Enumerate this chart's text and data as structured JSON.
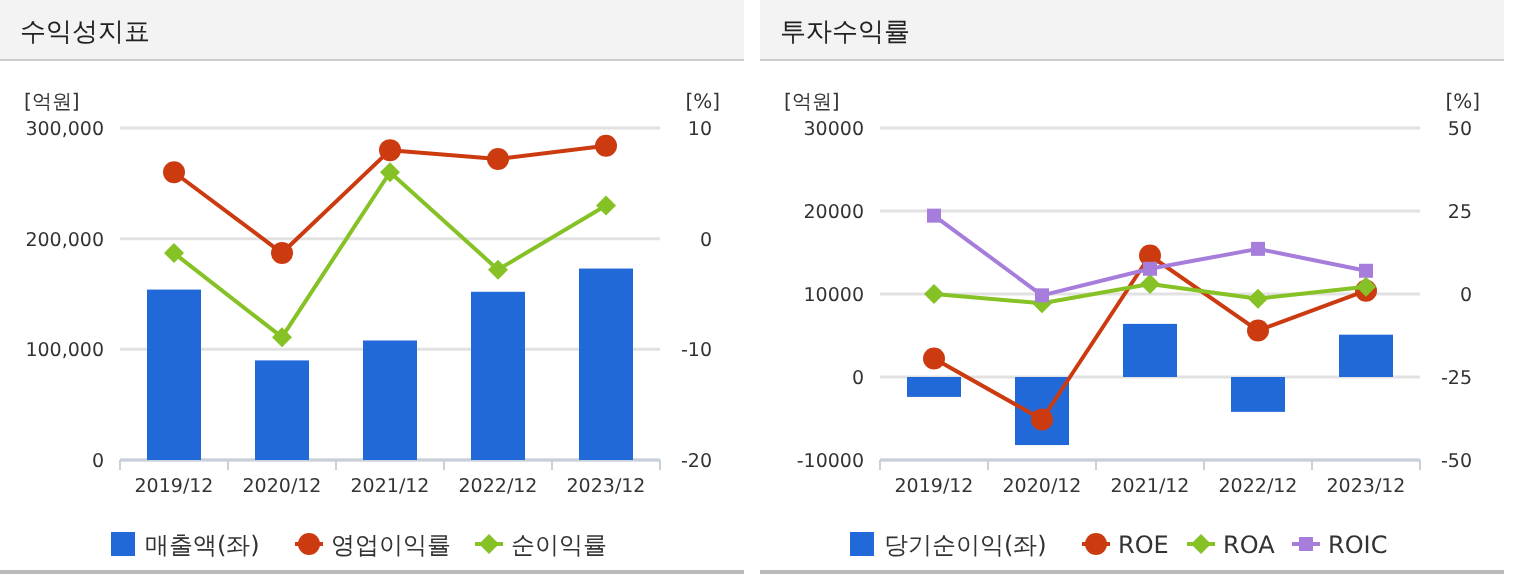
{
  "chart_data": [
    {
      "type": "bar",
      "title": "수익성지표",
      "ylabel": "[억원]",
      "y2label": "[%]",
      "categories": [
        "2019/12",
        "2020/12",
        "2021/12",
        "2022/12",
        "2023/12"
      ],
      "series": [
        {
          "name": "매출액(좌)",
          "color": "#2168d8",
          "values": [
            154000,
            90000,
            108000,
            152000,
            173000
          ]
        },
        {
          "name": "영업이익률",
          "type": "line",
          "axis": "y2",
          "marker": "circle",
          "color": "#cc3a10",
          "values": [
            6.0,
            -1.3,
            8.0,
            7.2,
            8.4
          ]
        },
        {
          "name": "순이익률",
          "type": "line",
          "axis": "y2",
          "marker": "diamond",
          "color": "#86c226",
          "values": [
            -1.3,
            -8.9,
            6.0,
            -2.8,
            3.0
          ]
        }
      ],
      "ylim": [
        0,
        300000
      ],
      "yticks": [
        0,
        {
          "value": 100000,
          "label": "100,000"
        },
        {
          "value": 200000,
          "label": "200,000"
        },
        {
          "value": 300000,
          "label": "300,000"
        }
      ],
      "y2lim": [
        -20,
        10
      ],
      "y2ticks": [
        -20,
        -10,
        0,
        10
      ],
      "grid": "y",
      "legend": "bottom"
    },
    {
      "type": "bar",
      "title": "투자수익률",
      "ylabel": "[억원]",
      "y2label": "[%]",
      "categories": [
        "2019/12",
        "2020/12",
        "2021/12",
        "2022/12",
        "2023/12"
      ],
      "series": [
        {
          "name": "당기순이익(좌)",
          "color": "#2168d8",
          "values": [
            -2400,
            -8200,
            6400,
            -4200,
            5100
          ]
        },
        {
          "name": "ROE",
          "type": "line",
          "axis": "y2",
          "marker": "circle",
          "color": "#cc3a10",
          "values": [
            -19.4,
            -37.8,
            11.6,
            -11,
            1.0
          ]
        },
        {
          "name": "ROA",
          "type": "line",
          "axis": "y2",
          "marker": "diamond",
          "color": "#86c226",
          "values": [
            0,
            -2.8,
            3.0,
            -1.4,
            2.2
          ]
        },
        {
          "name": "ROIC",
          "type": "line",
          "axis": "y2",
          "marker": "square",
          "color": "#a77ddc",
          "values": [
            23.6,
            -0.4,
            7.6,
            13.6,
            7.0
          ]
        }
      ],
      "ylim": [
        -10000,
        30000
      ],
      "yticks": [
        -10000,
        0,
        10000,
        20000,
        30000
      ],
      "y2lim": [
        -50,
        50
      ],
      "y2ticks": [
        -50,
        -25,
        0,
        25,
        50
      ],
      "grid": "y",
      "legend": "bottom"
    }
  ]
}
